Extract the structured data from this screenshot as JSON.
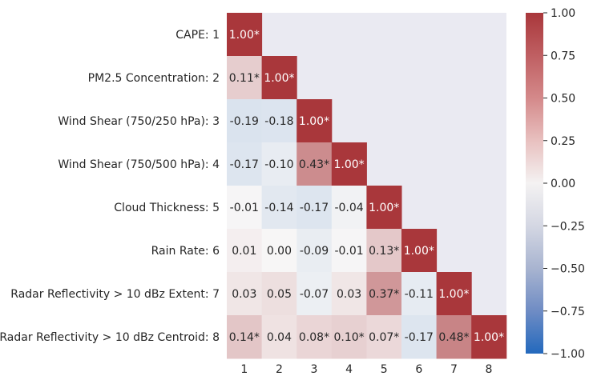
{
  "chart_data": {
    "type": "heatmap",
    "title": "",
    "xlabel": "",
    "ylabel": "",
    "rows": [
      "CAPE: 1",
      "PM2.5 Concentration: 2",
      "Wind Shear (750/250 hPa): 3",
      "Wind Shear (750/500 hPa): 4",
      "Cloud Thickness: 5",
      "Rain Rate: 6",
      "Radar Reflectivity > 10 dBz Extent: 7",
      "Radar Reflectivity > 10 dBz Centroid: 8"
    ],
    "columns": [
      "1",
      "2",
      "3",
      "4",
      "5",
      "6",
      "7",
      "8"
    ],
    "values": [
      [
        1.0
      ],
      [
        0.11,
        1.0
      ],
      [
        -0.19,
        -0.18,
        1.0
      ],
      [
        -0.17,
        -0.1,
        0.43,
        1.0
      ],
      [
        -0.01,
        -0.14,
        -0.17,
        -0.04,
        1.0
      ],
      [
        0.01,
        0.0,
        -0.09,
        -0.01,
        0.13,
        1.0
      ],
      [
        0.03,
        0.05,
        -0.07,
        0.03,
        0.37,
        -0.11,
        1.0
      ],
      [
        0.14,
        0.04,
        0.08,
        0.1,
        0.07,
        -0.17,
        0.48,
        1.0
      ]
    ],
    "annotations": [
      [
        "1.00*"
      ],
      [
        "0.11*",
        "1.00*"
      ],
      [
        "-0.19",
        "-0.18",
        "1.00*"
      ],
      [
        "-0.17",
        "-0.10",
        "0.43*",
        "1.00*"
      ],
      [
        "-0.01",
        "-0.14",
        "-0.17",
        "-0.04",
        "1.00*"
      ],
      [
        "0.01",
        "0.00",
        "-0.09",
        "-0.01",
        "0.13*",
        "1.00*"
      ],
      [
        "0.03",
        "0.05",
        "-0.07",
        "0.03",
        "0.37*",
        "-0.11",
        "1.00*"
      ],
      [
        "0.14*",
        "0.04",
        "0.08*",
        "0.10*",
        "0.07*",
        "-0.17",
        "0.48*",
        "1.00*"
      ]
    ],
    "colormap": "vlag",
    "vmin": -1.0,
    "vmax": 1.0,
    "colorbar_ticks": [
      "1.00",
      "0.75",
      "0.50",
      "0.25",
      "0.00",
      "−0.25",
      "−0.50",
      "−0.75",
      "−1.00"
    ],
    "colorbar_tick_values": [
      1.0,
      0.75,
      0.5,
      0.25,
      0.0,
      -0.25,
      -0.5,
      -0.75,
      -1.0
    ],
    "background_color": "#eaeaf2",
    "colors": {
      "low": "#2369bd",
      "mid": "#f7f6f6",
      "high": "#a9373b"
    }
  }
}
